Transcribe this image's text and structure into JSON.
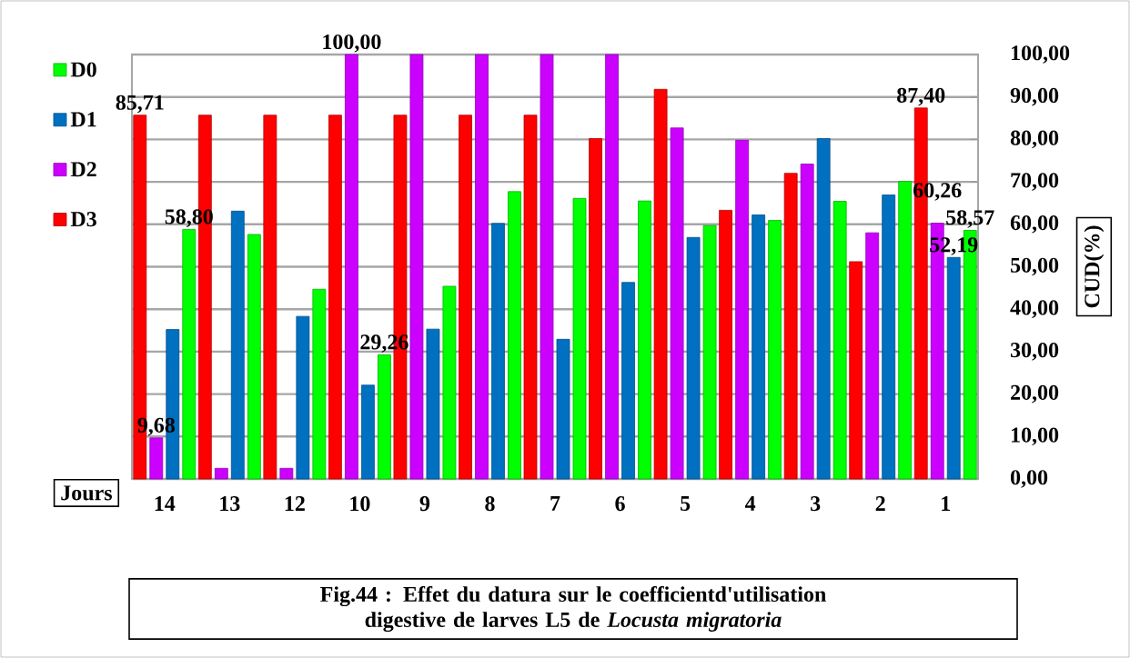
{
  "chart_data": {
    "type": "bar",
    "title": "Fig.44 : Effet du datura sur le coefficientd'utilisation digestive de larves L5 de *Locusta migratoria*",
    "xlabel": "Jours",
    "ylabel": "CUD(%)",
    "categories": [
      "14",
      "13",
      "12",
      "10",
      "9",
      "8",
      "7",
      "6",
      "5",
      "4",
      "3",
      "2",
      "1"
    ],
    "series": [
      {
        "name": "D3",
        "color": "#ff0000",
        "values": [
          85.71,
          85.71,
          85.71,
          85.71,
          85.71,
          85.71,
          85.71,
          80.2,
          91.8,
          63.3,
          72.0,
          51.2,
          87.4
        ],
        "value_labels": [
          "85,71",
          null,
          null,
          null,
          null,
          null,
          null,
          null,
          null,
          null,
          null,
          null,
          "87,40"
        ]
      },
      {
        "name": "D2",
        "color": "#cc00ff",
        "values": [
          9.68,
          2.5,
          2.5,
          100.0,
          100.0,
          100.0,
          100.0,
          100.0,
          82.7,
          79.8,
          74.2,
          58.0,
          60.26
        ],
        "value_labels": [
          "9,68",
          null,
          null,
          "100,00",
          null,
          null,
          null,
          null,
          null,
          null,
          null,
          null,
          "60,26"
        ]
      },
      {
        "name": "D1",
        "color": "#0070c0",
        "values": [
          35.2,
          63.1,
          38.3,
          22.1,
          35.3,
          60.2,
          32.9,
          46.3,
          56.9,
          62.2,
          80.2,
          66.9,
          52.19
        ],
        "value_labels": [
          null,
          null,
          null,
          null,
          null,
          null,
          null,
          null,
          null,
          null,
          null,
          null,
          "52,19"
        ]
      },
      {
        "name": "D0",
        "color": "#00ff00",
        "values": [
          58.8,
          57.6,
          44.7,
          29.26,
          45.4,
          67.7,
          66.1,
          65.5,
          59.7,
          60.9,
          65.4,
          70.1,
          58.57
        ],
        "value_labels": [
          "58,80",
          null,
          null,
          "29,26",
          null,
          null,
          null,
          null,
          null,
          null,
          null,
          null,
          "58,57"
        ]
      }
    ],
    "ylim": [
      0,
      100
    ],
    "yticks": [
      {
        "value": 0,
        "label": "0,00"
      },
      {
        "value": 10,
        "label": "10,00"
      },
      {
        "value": 20,
        "label": "20,00"
      },
      {
        "value": 30,
        "label": "30,00"
      },
      {
        "value": 40,
        "label": "40,00"
      },
      {
        "value": 50,
        "label": "50,00"
      },
      {
        "value": 60,
        "label": "60,00"
      },
      {
        "value": 70,
        "label": "70,00"
      },
      {
        "value": 80,
        "label": "80,00"
      },
      {
        "value": 90,
        "label": "90,00"
      },
      {
        "value": 100,
        "label": "100,00"
      }
    ],
    "grid": "y",
    "legend": "top left"
  }
}
